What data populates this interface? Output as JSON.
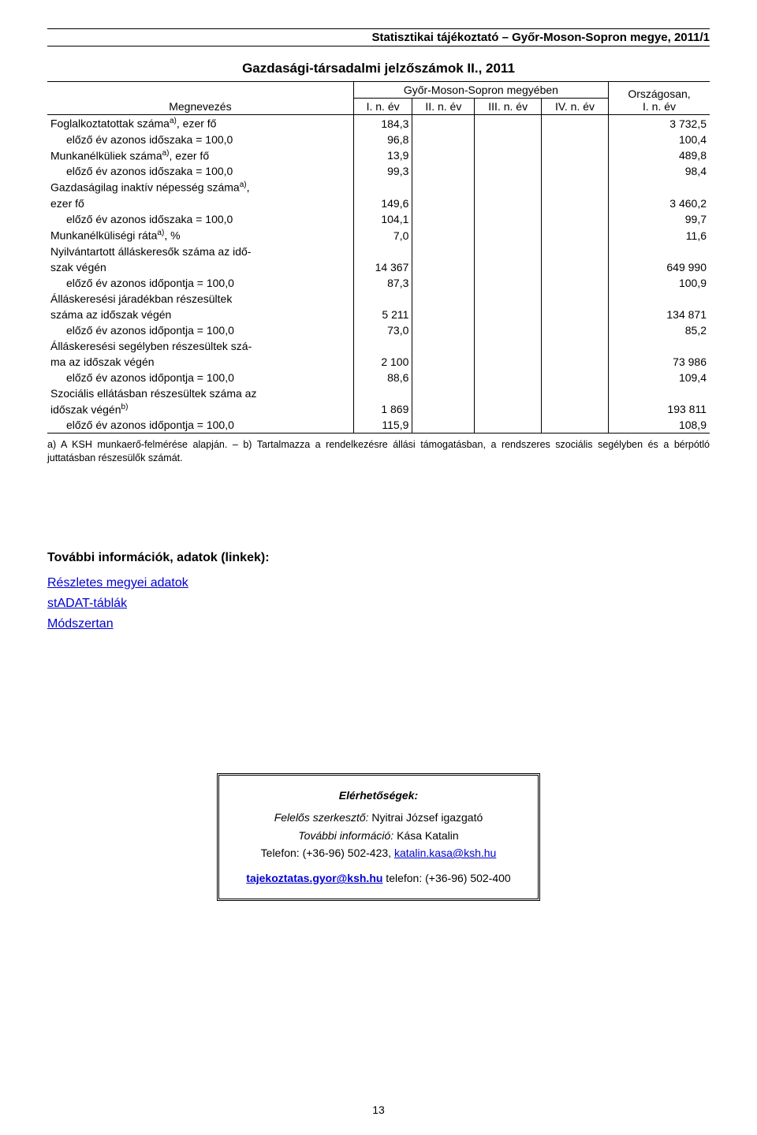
{
  "header": {
    "running_title": "Statisztikai tájékoztató – Győr-Moson-Sopron megye, 2011/1"
  },
  "table": {
    "title": "Gazdasági-társadalmi jelzőszámok II., 2011",
    "header": {
      "megnevezes": "Megnevezés",
      "region": "Győr-Moson-Sopron megyében",
      "orszag": "Országosan,\nI. n. év",
      "cols": [
        "I. n. év",
        "II. n. év",
        "III. n. év",
        "IV. n. év"
      ]
    },
    "rows": [
      {
        "label": "Foglalkoztatottak száma",
        "sup": "a)",
        "suffix": ", ezer fő",
        "indent": false,
        "c1": "184,3",
        "c5": "3 732,5"
      },
      {
        "label": "előző év azonos időszaka = 100,0",
        "indent": true,
        "c1": "96,8",
        "c5": "100,4"
      },
      {
        "label": "Munkanélküliek száma",
        "sup": "a)",
        "suffix": ", ezer fő",
        "indent": false,
        "c1": "13,9",
        "c5": "489,8"
      },
      {
        "label": "előző év azonos időszaka = 100,0",
        "indent": true,
        "c1": "99,3",
        "c5": "98,4"
      },
      {
        "label": "Gazdaságilag inaktív népesség száma",
        "sup": "a)",
        "suffix": ",",
        "indent": false,
        "c1": "",
        "c5": ""
      },
      {
        "label": "ezer fő",
        "indent": false,
        "c1": "149,6",
        "c5": "3 460,2"
      },
      {
        "label": "előző év azonos időszaka = 100,0",
        "indent": true,
        "c1": "104,1",
        "c5": "99,7"
      },
      {
        "label": "Munkanélküliségi ráta",
        "sup": "a)",
        "suffix": ", %",
        "indent": false,
        "c1": "7,0",
        "c5": "11,6"
      },
      {
        "label": "Nyilvántartott álláskeresők száma az idő-",
        "indent": false,
        "c1": "",
        "c5": ""
      },
      {
        "label": "szak végén",
        "indent": false,
        "c1": "14 367",
        "c5": "649 990"
      },
      {
        "label": "előző év azonos időpontja = 100,0",
        "indent": true,
        "c1": "87,3",
        "c5": "100,9"
      },
      {
        "label": "Álláskeresési járadékban részesültek",
        "indent": false,
        "c1": "",
        "c5": ""
      },
      {
        "label": "száma az időszak végén",
        "indent": false,
        "c1": "5 211",
        "c5": "134 871"
      },
      {
        "label": "előző év azonos időpontja = 100,0",
        "indent": true,
        "c1": "73,0",
        "c5": "85,2"
      },
      {
        "label": "Álláskeresési segélyben részesültek szá-",
        "indent": false,
        "c1": "",
        "c5": ""
      },
      {
        "label": "ma az időszak végén",
        "indent": false,
        "c1": "2 100",
        "c5": "73 986"
      },
      {
        "label": "előző év azonos időpontja = 100,0",
        "indent": true,
        "c1": "88,6",
        "c5": "109,4"
      },
      {
        "label": "Szociális ellátásban részesültek száma az",
        "indent": false,
        "c1": "",
        "c5": ""
      },
      {
        "label": "időszak végén",
        "sup": "b)",
        "indent": false,
        "c1": "1 869",
        "c5": "193 811"
      },
      {
        "label": "előző év azonos időpontja = 100,0",
        "indent": true,
        "c1": "115,9",
        "c5": "108,9"
      }
    ],
    "footnote": "a) A KSH munkaerő-felmérése alapján. – b) Tartalmazza a rendelkezésre állási támogatásban, a rendszeres szociális segélyben és a bérpótló juttatásban részesülők számát."
  },
  "links": {
    "title": "További információk, adatok (linkek):",
    "items": [
      "Részletes megyei adatok",
      "stADAT-táblák",
      "Módszertan"
    ]
  },
  "contact": {
    "heading": "Elérhetőségek:",
    "line1_label": "Felelős szerkesztő:",
    "line1_value": " Nyitrai József igazgató",
    "line2_label": "További információ:",
    "line2_value": " Kása Katalin",
    "line3_prefix": "Telefon: (+36-96) 502-423, ",
    "line3_email": "katalin.kasa@ksh.hu",
    "line4_email": "tajekoztatas.gyor@ksh.hu",
    "line4_suffix": "   telefon: (+36-96) 502-400"
  },
  "page_number": "13"
}
